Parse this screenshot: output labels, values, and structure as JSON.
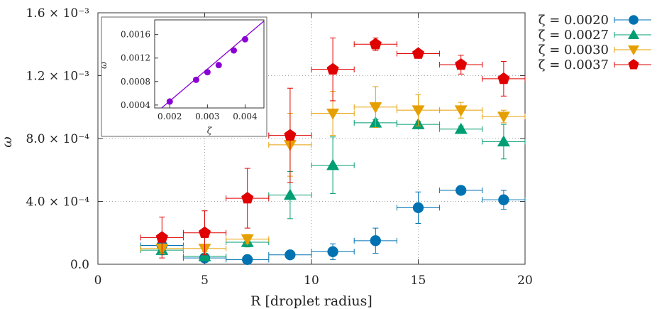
{
  "chart_data": [
    {
      "type": "scatter",
      "xlabel": "R [droplet radius]",
      "ylabel": "ω",
      "xlim": [
        0,
        20
      ],
      "ylim": [
        0,
        0.0016
      ],
      "x_ticks": [
        "0",
        "5",
        "10",
        "15",
        "20"
      ],
      "y_ticks": [
        {
          "value": 0.0,
          "label": "0.0"
        },
        {
          "value": 0.0004,
          "label": "4.0 × 10⁻⁴"
        },
        {
          "value": 0.0008,
          "label": "8.0 × 10⁻⁴"
        },
        {
          "value": 0.0012,
          "label": "1.2 × 10⁻³"
        },
        {
          "value": 0.0016,
          "label": "1.6 × 10⁻³"
        }
      ],
      "legend_position": "outside-right",
      "x_error_halfwidth": 1,
      "series": [
        {
          "name": "ζ = 0.0020",
          "marker": "circle",
          "color": "#0072b2",
          "x": [
            3,
            5,
            7,
            9,
            11,
            13,
            15,
            17,
            19
          ],
          "y": [
            0.00012,
            4e-05,
            3e-05,
            6e-05,
            8e-05,
            0.00015,
            0.00036,
            0.00047,
            0.00041
          ],
          "yerr": [
            3e-05,
            2e-05,
            2e-05,
            2e-05,
            5e-05,
            8e-05,
            0.0001,
            2e-05,
            6e-05
          ]
        },
        {
          "name": "ζ = 0.0027",
          "marker": "triangle-up",
          "color": "#009e73",
          "x": [
            3,
            5,
            7,
            9,
            11,
            13,
            15,
            17,
            19
          ],
          "y": [
            9e-05,
            5e-05,
            0.00014,
            0.00044,
            0.00063,
            0.0009,
            0.00089,
            0.00086,
            0.00078
          ],
          "yerr": [
            3e-05,
            2e-05,
            3e-05,
            0.00015,
            0.00018,
            2e-05,
            2e-05,
            2e-05,
            0.00011
          ]
        },
        {
          "name": "ζ = 0.0030",
          "marker": "triangle-down",
          "color": "#e69f00",
          "x": [
            3,
            5,
            7,
            9,
            11,
            13,
            15,
            17,
            19
          ],
          "y": [
            0.0001,
            0.0001,
            0.00016,
            0.00076,
            0.00096,
            0.001,
            0.00098,
            0.00098,
            0.00094
          ],
          "yerr": [
            3e-05,
            2e-05,
            3e-05,
            0.0002,
            0.00014,
            0.00013,
            0.0001,
            5e-05,
            4e-05
          ]
        },
        {
          "name": "ζ = 0.0037",
          "marker": "pentagon",
          "color": "#e00000",
          "x": [
            3,
            5,
            7,
            9,
            11,
            13,
            15,
            17,
            19
          ],
          "y": [
            0.00017,
            0.0002,
            0.00042,
            0.00082,
            0.00124,
            0.0014,
            0.00134,
            0.00127,
            0.00118
          ],
          "yerr": [
            0.00013,
            0.00014,
            0.00019,
            0.0003,
            0.0002,
            4e-05,
            2e-05,
            6e-05,
            0.00011
          ]
        }
      ]
    },
    {
      "type": "scatter",
      "inset": true,
      "xlabel": "ζ",
      "ylabel": "ω",
      "xlim": [
        0.0016,
        0.0045
      ],
      "ylim": [
        0.00035,
        0.00185
      ],
      "x_ticks": [
        "0.002",
        "0.003",
        "0.004"
      ],
      "y_ticks": [
        "0.0004",
        "0.0008",
        "0.0012",
        "0.0016"
      ],
      "color": "#8a00d4",
      "fit_line": {
        "x": [
          0.0016,
          0.0045
        ],
        "y": [
          0.00025,
          0.00183
        ]
      },
      "points": {
        "x": [
          0.002,
          0.0027,
          0.003,
          0.0033,
          0.0037,
          0.004
        ],
        "y": [
          0.00046,
          0.00083,
          0.00096,
          0.00108,
          0.00133,
          0.00152
        ]
      }
    }
  ]
}
